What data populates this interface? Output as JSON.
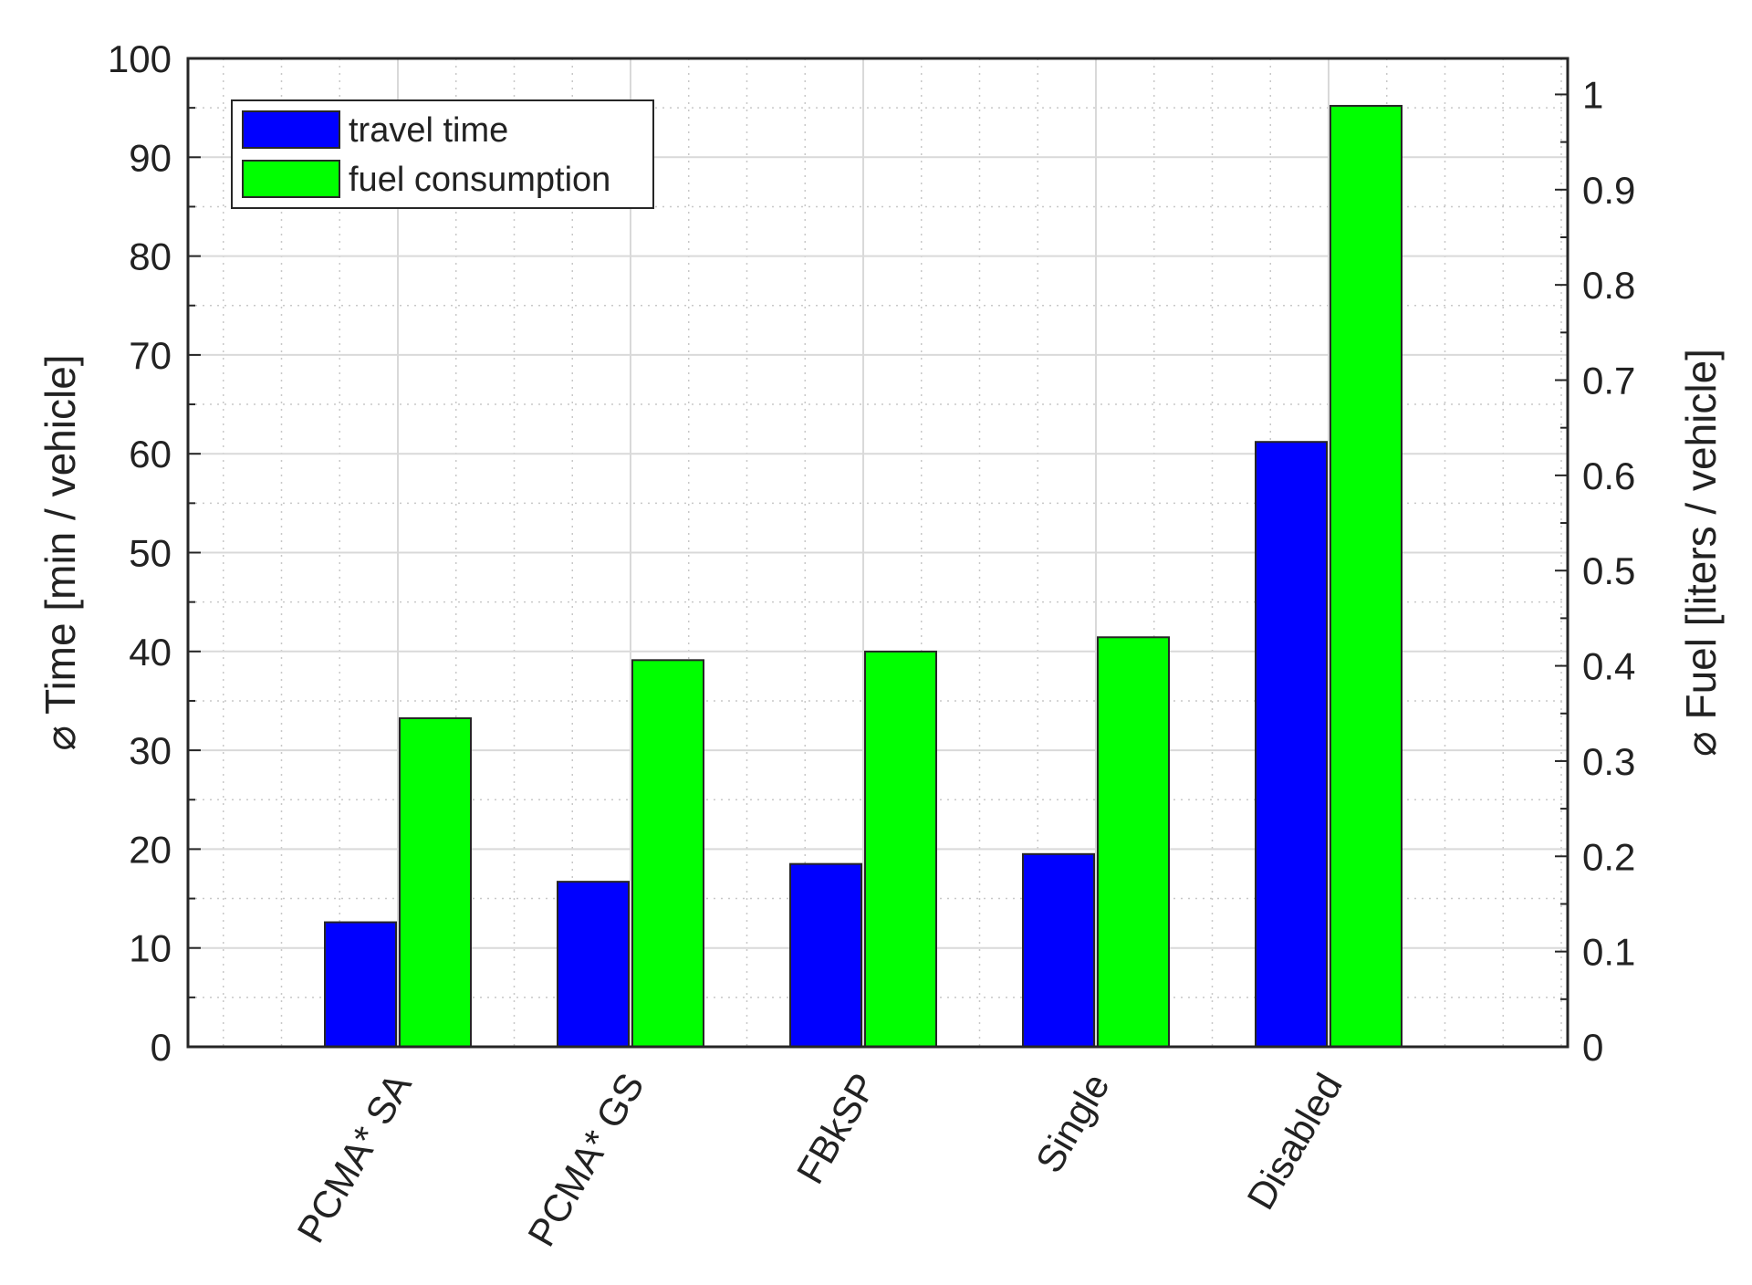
{
  "chart_data": {
    "type": "bar",
    "categories": [
      "PCMA* SA",
      "PCMA* GS",
      "FBkSP",
      "Single",
      "Disabled"
    ],
    "series": [
      {
        "name": "travel time",
        "axis": "left",
        "color": "#0000ff",
        "values": [
          12.6,
          16.7,
          18.5,
          19.5,
          61.2
        ]
      },
      {
        "name": "fuel consumption",
        "axis": "right",
        "color": "#00ff00",
        "values": [
          0.345,
          0.406,
          0.415,
          0.43,
          0.988
        ]
      }
    ],
    "ylabel": "⌀ Time [min / vehicle]",
    "ylabel_right": "⌀ Fuel [liters / vehicle]",
    "ylim": [
      0,
      100
    ],
    "ylim_right": [
      0,
      1.0378
    ],
    "yticks": [
      "0",
      "10",
      "20",
      "30",
      "40",
      "50",
      "60",
      "70",
      "80",
      "90",
      "100"
    ],
    "yticks_right": [
      "0",
      "0.1",
      "0.2",
      "0.3",
      "0.4",
      "0.5",
      "0.6",
      "0.7",
      "0.8",
      "0.9",
      "1"
    ],
    "grid": true,
    "minor_grid": true,
    "legend_position": "top-left"
  }
}
